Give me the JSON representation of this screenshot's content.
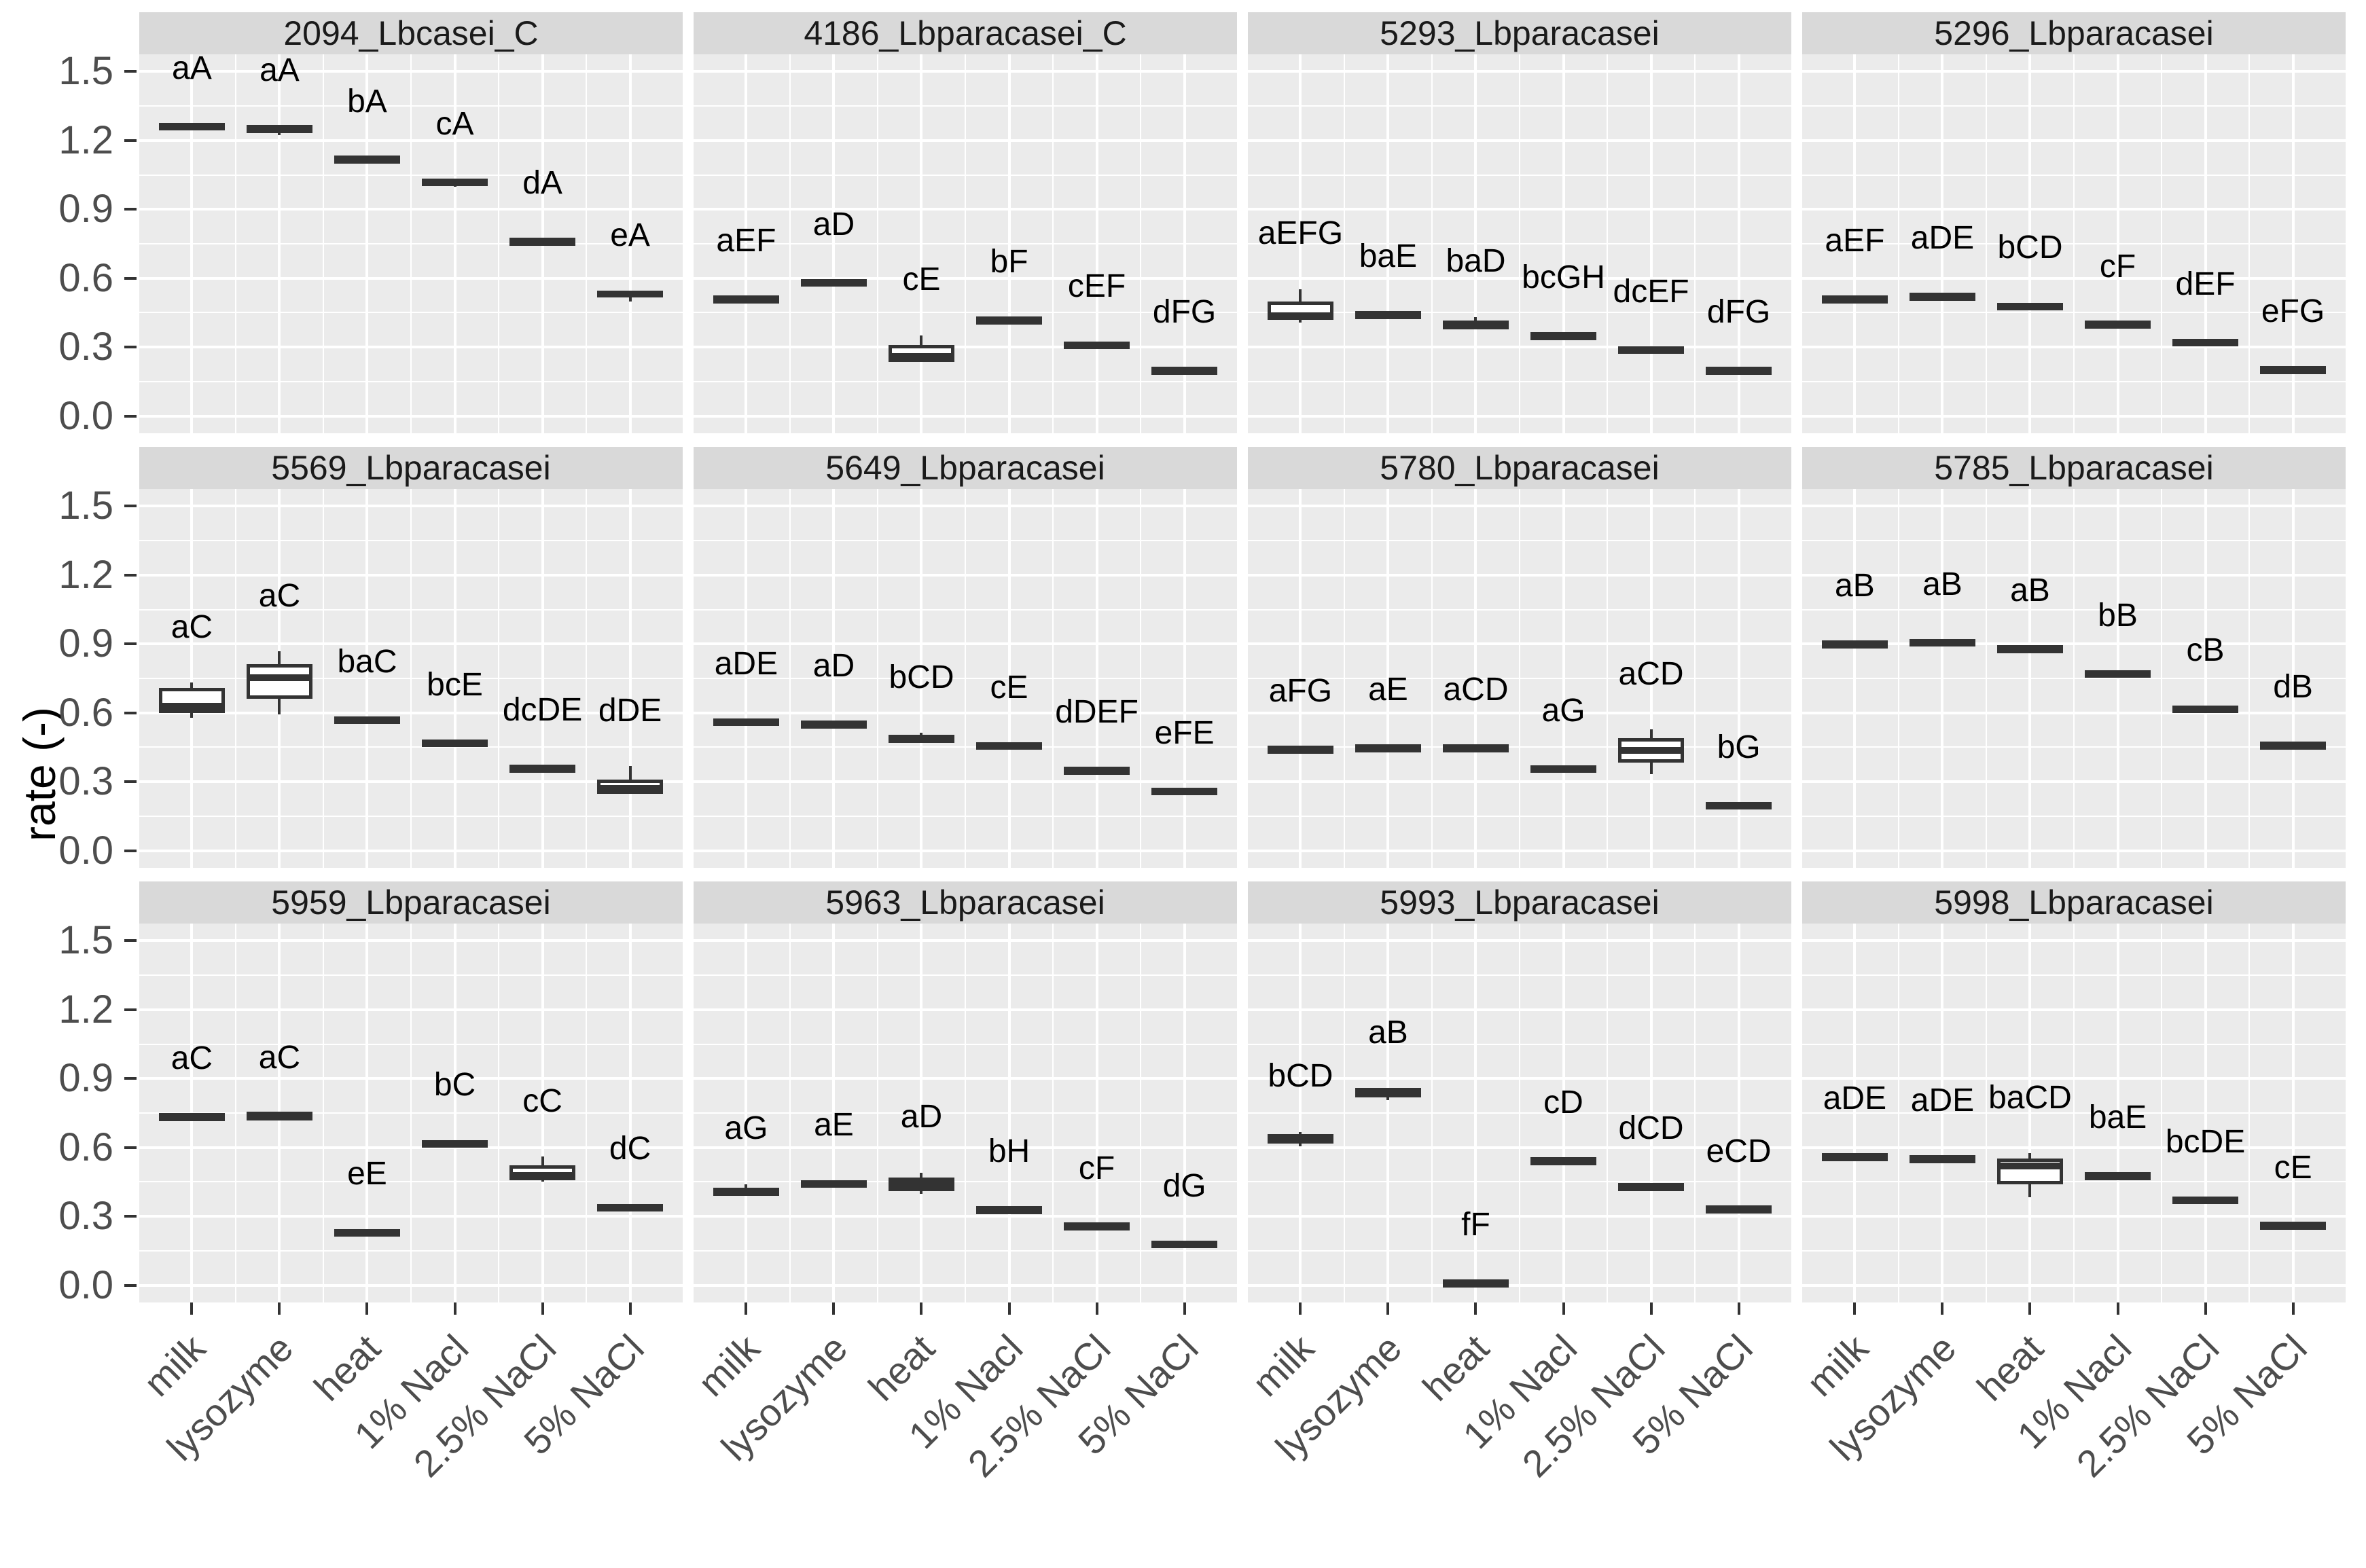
{
  "figure": {
    "y_axis_title": "rate (-)"
  },
  "colors": {
    "panel_background": "#ebebeb",
    "strip_background": "#d9d9d9",
    "gridline": "#ffffff",
    "box_stroke": "#333333",
    "box_fill": "#ffffff",
    "axis_text": "#4d4d4d",
    "strip_text": "#1a1a1a",
    "sig_label_text": "#000000"
  },
  "chart_data": {
    "type": "boxplot",
    "layout": "facet-grid 3 rows x 4 columns",
    "ylabel": "rate (-)",
    "ylim": [
      0,
      1.5
    ],
    "y_ticks": [
      "0.0",
      "0.3",
      "0.6",
      "0.9",
      "1.2",
      "1.5"
    ],
    "y_tick_values": [
      0,
      0.3,
      0.6,
      0.9,
      1.2,
      1.5
    ],
    "y_minor_values": [
      0.15,
      0.45,
      0.75,
      1.05,
      1.35
    ],
    "grid": "white major and minor gridlines on gray panel",
    "legend": "none",
    "categories": [
      "milk",
      "lysozyme",
      "heat",
      "1% Nacl",
      "2.5% NaCl",
      "5% NaCl"
    ],
    "panels": [
      {
        "title": "2094_Lbcasei_C",
        "boxes": [
          {
            "category": "milk",
            "sig_label": "aA",
            "median": 1.262,
            "q1": 1.253,
            "q3": 1.272,
            "whisker_low": 1.253,
            "whisker_high": 1.272
          },
          {
            "category": "lysozyme",
            "sig_label": "aA",
            "median": 1.252,
            "q1": 1.24,
            "q3": 1.262,
            "whisker_low": 1.222,
            "whisker_high": 1.262
          },
          {
            "category": "heat",
            "sig_label": "bA",
            "median": 1.119,
            "q1": 1.11,
            "q3": 1.128,
            "whisker_low": 1.11,
            "whisker_high": 1.128
          },
          {
            "category": "1% Nacl",
            "sig_label": "cA",
            "median": 1.02,
            "q1": 1.01,
            "q3": 1.03,
            "whisker_low": 0.998,
            "whisker_high": 1.03
          },
          {
            "category": "2.5% NaCl",
            "sig_label": "dA",
            "median": 0.761,
            "q1": 0.75,
            "q3": 0.772,
            "whisker_low": 0.75,
            "whisker_high": 0.772
          },
          {
            "category": "5% NaCl",
            "sig_label": "eA",
            "median": 0.53,
            "q1": 0.515,
            "q3": 0.545,
            "whisker_low": 0.498,
            "whisker_high": 0.545
          }
        ]
      },
      {
        "title": "4186_Lbparacasei_C",
        "boxes": [
          {
            "category": "milk",
            "sig_label": "aEF",
            "median": 0.51,
            "q1": 0.5,
            "q3": 0.52,
            "whisker_low": 0.5,
            "whisker_high": 0.52
          },
          {
            "category": "lysozyme",
            "sig_label": "aD",
            "median": 0.582,
            "q1": 0.57,
            "q3": 0.592,
            "whisker_low": 0.57,
            "whisker_high": 0.592
          },
          {
            "category": "heat",
            "sig_label": "cE",
            "median": 0.258,
            "q1": 0.235,
            "q3": 0.31,
            "whisker_low": 0.235,
            "whisker_high": 0.352
          },
          {
            "category": "1% Nacl",
            "sig_label": "bF",
            "median": 0.418,
            "q1": 0.408,
            "q3": 0.428,
            "whisker_low": 0.408,
            "whisker_high": 0.428
          },
          {
            "category": "2.5% NaCl",
            "sig_label": "cEF",
            "median": 0.31,
            "q1": 0.3,
            "q3": 0.322,
            "whisker_low": 0.3,
            "whisker_high": 0.322
          },
          {
            "category": "5% NaCl",
            "sig_label": "dFG",
            "median": 0.2,
            "q1": 0.192,
            "q3": 0.21,
            "whisker_low": 0.192,
            "whisker_high": 0.21
          }
        ]
      },
      {
        "title": "5293_Lbparacasei",
        "boxes": [
          {
            "category": "milk",
            "sig_label": "aEFG",
            "median": 0.438,
            "q1": 0.42,
            "q3": 0.5,
            "whisker_low": 0.408,
            "whisker_high": 0.553
          },
          {
            "category": "lysozyme",
            "sig_label": "baE",
            "median": 0.442,
            "q1": 0.432,
            "q3": 0.452,
            "whisker_low": 0.432,
            "whisker_high": 0.452
          },
          {
            "category": "heat",
            "sig_label": "baD",
            "median": 0.402,
            "q1": 0.378,
            "q3": 0.415,
            "whisker_low": 0.378,
            "whisker_high": 0.432
          },
          {
            "category": "1% Nacl",
            "sig_label": "bcGH",
            "median": 0.35,
            "q1": 0.34,
            "q3": 0.36,
            "whisker_low": 0.34,
            "whisker_high": 0.36
          },
          {
            "category": "2.5% NaCl",
            "sig_label": "dcEF",
            "median": 0.288,
            "q1": 0.278,
            "q3": 0.3,
            "whisker_low": 0.278,
            "whisker_high": 0.3
          },
          {
            "category": "5% NaCl",
            "sig_label": "dFG",
            "median": 0.2,
            "q1": 0.19,
            "q3": 0.21,
            "whisker_low": 0.19,
            "whisker_high": 0.21
          }
        ]
      },
      {
        "title": "5296_Lbparacasei",
        "boxes": [
          {
            "category": "milk",
            "sig_label": "aEF",
            "median": 0.511,
            "q1": 0.502,
            "q3": 0.52,
            "whisker_low": 0.502,
            "whisker_high": 0.52
          },
          {
            "category": "lysozyme",
            "sig_label": "aDE",
            "median": 0.522,
            "q1": 0.512,
            "q3": 0.532,
            "whisker_low": 0.512,
            "whisker_high": 0.532
          },
          {
            "category": "heat",
            "sig_label": "bCD",
            "median": 0.478,
            "q1": 0.468,
            "q3": 0.49,
            "whisker_low": 0.468,
            "whisker_high": 0.49
          },
          {
            "category": "1% Nacl",
            "sig_label": "cF",
            "median": 0.4,
            "q1": 0.39,
            "q3": 0.41,
            "whisker_low": 0.39,
            "whisker_high": 0.41
          },
          {
            "category": "2.5% NaCl",
            "sig_label": "dEF",
            "median": 0.32,
            "q1": 0.31,
            "q3": 0.332,
            "whisker_low": 0.31,
            "whisker_high": 0.332
          },
          {
            "category": "5% NaCl",
            "sig_label": "eFG",
            "median": 0.202,
            "q1": 0.192,
            "q3": 0.212,
            "whisker_low": 0.192,
            "whisker_high": 0.212
          }
        ]
      },
      {
        "title": "5569_Lbparacasei",
        "boxes": [
          {
            "category": "milk",
            "sig_label": "aC",
            "median": 0.628,
            "q1": 0.598,
            "q3": 0.71,
            "whisker_low": 0.578,
            "whisker_high": 0.732
          },
          {
            "category": "lysozyme",
            "sig_label": "aC",
            "median": 0.752,
            "q1": 0.66,
            "q3": 0.812,
            "whisker_low": 0.592,
            "whisker_high": 0.868
          },
          {
            "category": "heat",
            "sig_label": "baC",
            "median": 0.57,
            "q1": 0.562,
            "q3": 0.58,
            "whisker_low": 0.562,
            "whisker_high": 0.58
          },
          {
            "category": "1% Nacl",
            "sig_label": "bcE",
            "median": 0.47,
            "q1": 0.462,
            "q3": 0.48,
            "whisker_low": 0.462,
            "whisker_high": 0.48
          },
          {
            "category": "2.5% NaCl",
            "sig_label": "dcDE",
            "median": 0.36,
            "q1": 0.352,
            "q3": 0.37,
            "whisker_low": 0.352,
            "whisker_high": 0.37
          },
          {
            "category": "5% NaCl",
            "sig_label": "dDE",
            "median": 0.272,
            "q1": 0.248,
            "q3": 0.31,
            "whisker_low": 0.248,
            "whisker_high": 0.368
          }
        ]
      },
      {
        "title": "5649_Lbparacasei",
        "boxes": [
          {
            "category": "milk",
            "sig_label": "aDE",
            "median": 0.562,
            "q1": 0.552,
            "q3": 0.572,
            "whisker_low": 0.552,
            "whisker_high": 0.572
          },
          {
            "category": "lysozyme",
            "sig_label": "aD",
            "median": 0.552,
            "q1": 0.542,
            "q3": 0.562,
            "whisker_low": 0.542,
            "whisker_high": 0.562
          },
          {
            "category": "heat",
            "sig_label": "bCD",
            "median": 0.49,
            "q1": 0.482,
            "q3": 0.5,
            "whisker_low": 0.482,
            "whisker_high": 0.512
          },
          {
            "category": "1% Nacl",
            "sig_label": "cE",
            "median": 0.458,
            "q1": 0.448,
            "q3": 0.468,
            "whisker_low": 0.448,
            "whisker_high": 0.468
          },
          {
            "category": "2.5% NaCl",
            "sig_label": "dDEF",
            "median": 0.35,
            "q1": 0.342,
            "q3": 0.36,
            "whisker_low": 0.342,
            "whisker_high": 0.36
          },
          {
            "category": "5% NaCl",
            "sig_label": "eFE",
            "median": 0.26,
            "q1": 0.25,
            "q3": 0.27,
            "whisker_low": 0.25,
            "whisker_high": 0.27
          }
        ]
      },
      {
        "title": "5780_Lbparacasei",
        "boxes": [
          {
            "category": "milk",
            "sig_label": "aFG",
            "median": 0.442,
            "q1": 0.432,
            "q3": 0.452,
            "whisker_low": 0.424,
            "whisker_high": 0.452
          },
          {
            "category": "lysozyme",
            "sig_label": "aE",
            "median": 0.448,
            "q1": 0.44,
            "q3": 0.458,
            "whisker_low": 0.44,
            "whisker_high": 0.458
          },
          {
            "category": "heat",
            "sig_label": "aCD",
            "median": 0.448,
            "q1": 0.44,
            "q3": 0.458,
            "whisker_low": 0.44,
            "whisker_high": 0.458
          },
          {
            "category": "1% Nacl",
            "sig_label": "aG",
            "median": 0.358,
            "q1": 0.348,
            "q3": 0.368,
            "whisker_low": 0.348,
            "whisker_high": 0.368
          },
          {
            "category": "2.5% NaCl",
            "sig_label": "aCD",
            "median": 0.438,
            "q1": 0.382,
            "q3": 0.49,
            "whisker_low": 0.332,
            "whisker_high": 0.528
          },
          {
            "category": "5% NaCl",
            "sig_label": "bG",
            "median": 0.198,
            "q1": 0.188,
            "q3": 0.208,
            "whisker_low": 0.188,
            "whisker_high": 0.208
          }
        ]
      },
      {
        "title": "5785_Lbparacasei",
        "boxes": [
          {
            "category": "milk",
            "sig_label": "aB",
            "median": 0.9,
            "q1": 0.892,
            "q3": 0.91,
            "whisker_low": 0.892,
            "whisker_high": 0.91
          },
          {
            "category": "lysozyme",
            "sig_label": "aB",
            "median": 0.908,
            "q1": 0.9,
            "q3": 0.918,
            "whisker_low": 0.9,
            "whisker_high": 0.918
          },
          {
            "category": "heat",
            "sig_label": "aB",
            "median": 0.88,
            "q1": 0.872,
            "q3": 0.89,
            "whisker_low": 0.872,
            "whisker_high": 0.89
          },
          {
            "category": "1% Nacl",
            "sig_label": "bB",
            "median": 0.77,
            "q1": 0.762,
            "q3": 0.782,
            "whisker_low": 0.762,
            "whisker_high": 0.782
          },
          {
            "category": "2.5% NaCl",
            "sig_label": "cB",
            "median": 0.618,
            "q1": 0.608,
            "q3": 0.63,
            "whisker_low": 0.608,
            "whisker_high": 0.63
          },
          {
            "category": "5% NaCl",
            "sig_label": "dB",
            "median": 0.46,
            "q1": 0.452,
            "q3": 0.47,
            "whisker_low": 0.452,
            "whisker_high": 0.47
          }
        ]
      },
      {
        "title": "5959_Lbparacasei",
        "boxes": [
          {
            "category": "milk",
            "sig_label": "aC",
            "median": 0.734,
            "q1": 0.725,
            "q3": 0.745,
            "whisker_low": 0.725,
            "whisker_high": 0.745
          },
          {
            "category": "lysozyme",
            "sig_label": "aC",
            "median": 0.74,
            "q1": 0.73,
            "q3": 0.748,
            "whisker_low": 0.722,
            "whisker_high": 0.748
          },
          {
            "category": "heat",
            "sig_label": "eE",
            "median": 0.23,
            "q1": 0.222,
            "q3": 0.242,
            "whisker_low": 0.222,
            "whisker_high": 0.242
          },
          {
            "category": "1% Nacl",
            "sig_label": "bC",
            "median": 0.618,
            "q1": 0.608,
            "q3": 0.63,
            "whisker_low": 0.608,
            "whisker_high": 0.63
          },
          {
            "category": "2.5% NaCl",
            "sig_label": "cC",
            "median": 0.478,
            "q1": 0.458,
            "q3": 0.522,
            "whisker_low": 0.452,
            "whisker_high": 0.56
          },
          {
            "category": "5% NaCl",
            "sig_label": "dC",
            "median": 0.34,
            "q1": 0.33,
            "q3": 0.35,
            "whisker_low": 0.33,
            "whisker_high": 0.352
          }
        ]
      },
      {
        "title": "5963_Lbparacasei",
        "boxes": [
          {
            "category": "milk",
            "sig_label": "aG",
            "median": 0.405,
            "q1": 0.39,
            "q3": 0.425,
            "whisker_low": 0.39,
            "whisker_high": 0.44
          },
          {
            "category": "lysozyme",
            "sig_label": "aE",
            "median": 0.442,
            "q1": 0.428,
            "q3": 0.455,
            "whisker_low": 0.428,
            "whisker_high": 0.455
          },
          {
            "category": "heat",
            "sig_label": "aD",
            "median": 0.44,
            "q1": 0.41,
            "q3": 0.468,
            "whisker_low": 0.398,
            "whisker_high": 0.49
          },
          {
            "category": "1% Nacl",
            "sig_label": "bH",
            "median": 0.33,
            "q1": 0.32,
            "q3": 0.34,
            "whisker_low": 0.32,
            "whisker_high": 0.34
          },
          {
            "category": "2.5% NaCl",
            "sig_label": "cF",
            "median": 0.258,
            "q1": 0.25,
            "q3": 0.268,
            "whisker_low": 0.25,
            "whisker_high": 0.268
          },
          {
            "category": "5% NaCl",
            "sig_label": "dG",
            "median": 0.18,
            "q1": 0.172,
            "q3": 0.19,
            "whisker_low": 0.172,
            "whisker_high": 0.19
          }
        ]
      },
      {
        "title": "5993_Lbparacasei",
        "boxes": [
          {
            "category": "milk",
            "sig_label": "bCD",
            "median": 0.638,
            "q1": 0.618,
            "q3": 0.658,
            "whisker_low": 0.606,
            "whisker_high": 0.668
          },
          {
            "category": "lysozyme",
            "sig_label": "aB",
            "median": 0.832,
            "q1": 0.818,
            "q3": 0.858,
            "whisker_low": 0.806,
            "whisker_high": 0.858
          },
          {
            "category": "heat",
            "sig_label": "fF",
            "median": 0.01,
            "q1": 0.002,
            "q3": 0.02,
            "whisker_low": 0.002,
            "whisker_high": 0.02
          },
          {
            "category": "1% Nacl",
            "sig_label": "cD",
            "median": 0.542,
            "q1": 0.532,
            "q3": 0.552,
            "whisker_low": 0.532,
            "whisker_high": 0.552
          },
          {
            "category": "2.5% NaCl",
            "sig_label": "dCD",
            "median": 0.43,
            "q1": 0.422,
            "q3": 0.44,
            "whisker_low": 0.422,
            "whisker_high": 0.44
          },
          {
            "category": "5% NaCl",
            "sig_label": "eCD",
            "median": 0.332,
            "q1": 0.322,
            "q3": 0.342,
            "whisker_low": 0.322,
            "whisker_high": 0.342
          }
        ]
      },
      {
        "title": "5998_Lbparacasei",
        "boxes": [
          {
            "category": "milk",
            "sig_label": "aDE",
            "median": 0.56,
            "q1": 0.55,
            "q3": 0.57,
            "whisker_low": 0.55,
            "whisker_high": 0.57
          },
          {
            "category": "lysozyme",
            "sig_label": "aDE",
            "median": 0.552,
            "q1": 0.542,
            "q3": 0.562,
            "whisker_low": 0.542,
            "whisker_high": 0.562
          },
          {
            "category": "heat",
            "sig_label": "baCD",
            "median": 0.52,
            "q1": 0.44,
            "q3": 0.552,
            "whisker_low": 0.382,
            "whisker_high": 0.575
          },
          {
            "category": "1% Nacl",
            "sig_label": "baE",
            "median": 0.478,
            "q1": 0.468,
            "q3": 0.488,
            "whisker_low": 0.468,
            "whisker_high": 0.488
          },
          {
            "category": "2.5% NaCl",
            "sig_label": "bcDE",
            "median": 0.372,
            "q1": 0.362,
            "q3": 0.382,
            "whisker_low": 0.362,
            "whisker_high": 0.382
          },
          {
            "category": "5% NaCl",
            "sig_label": "cE",
            "median": 0.261,
            "q1": 0.252,
            "q3": 0.27,
            "whisker_low": 0.252,
            "whisker_high": 0.27
          }
        ]
      }
    ]
  }
}
